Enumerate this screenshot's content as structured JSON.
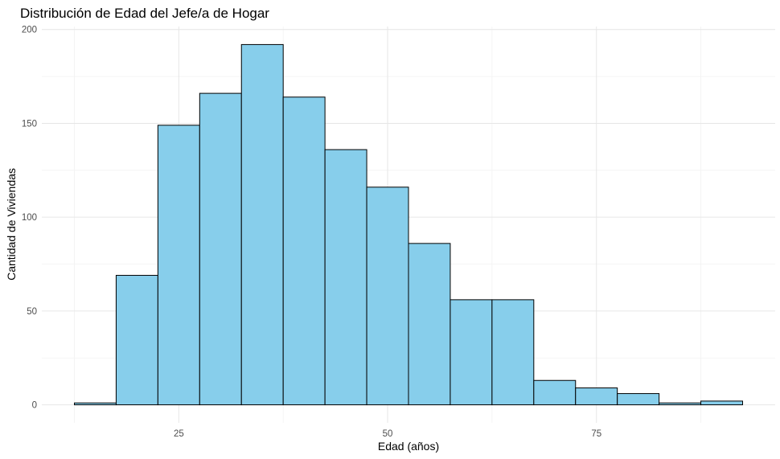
{
  "chart_data": {
    "type": "bar",
    "title": "Distribución de Edad del Jefe/a de Hogar",
    "xlabel": "Edad (años)",
    "ylabel": "Cantidad de Viviendas",
    "bin_width": 5,
    "bins": [
      {
        "start": 12.5,
        "end": 17.5,
        "count": 1
      },
      {
        "start": 17.5,
        "end": 22.5,
        "count": 69
      },
      {
        "start": 22.5,
        "end": 27.5,
        "count": 149
      },
      {
        "start": 27.5,
        "end": 32.5,
        "count": 166
      },
      {
        "start": 32.5,
        "end": 37.5,
        "count": 192
      },
      {
        "start": 37.5,
        "end": 42.5,
        "count": 164
      },
      {
        "start": 42.5,
        "end": 47.5,
        "count": 136
      },
      {
        "start": 47.5,
        "end": 52.5,
        "count": 116
      },
      {
        "start": 52.5,
        "end": 57.5,
        "count": 86
      },
      {
        "start": 57.5,
        "end": 62.5,
        "count": 56
      },
      {
        "start": 62.5,
        "end": 67.5,
        "count": 56
      },
      {
        "start": 67.5,
        "end": 72.5,
        "count": 13
      },
      {
        "start": 72.5,
        "end": 77.5,
        "count": 9
      },
      {
        "start": 77.5,
        "end": 82.5,
        "count": 6
      },
      {
        "start": 82.5,
        "end": 87.5,
        "count": 1
      },
      {
        "start": 87.5,
        "end": 92.5,
        "count": 2
      }
    ],
    "xlim": [
      8.6,
      96.4
    ],
    "ylim": [
      -9.6,
      201.6
    ],
    "x_ticks": [
      25,
      50,
      75
    ],
    "x_tick_labels": [
      "25",
      "50",
      "75"
    ],
    "y_ticks": [
      0,
      50,
      100,
      150,
      200
    ],
    "y_tick_labels": [
      "0",
      "50",
      "100",
      "150",
      "200"
    ],
    "grid": true,
    "legend": "none",
    "fill_color": "#87CEEB",
    "edge_color": "#000000"
  }
}
